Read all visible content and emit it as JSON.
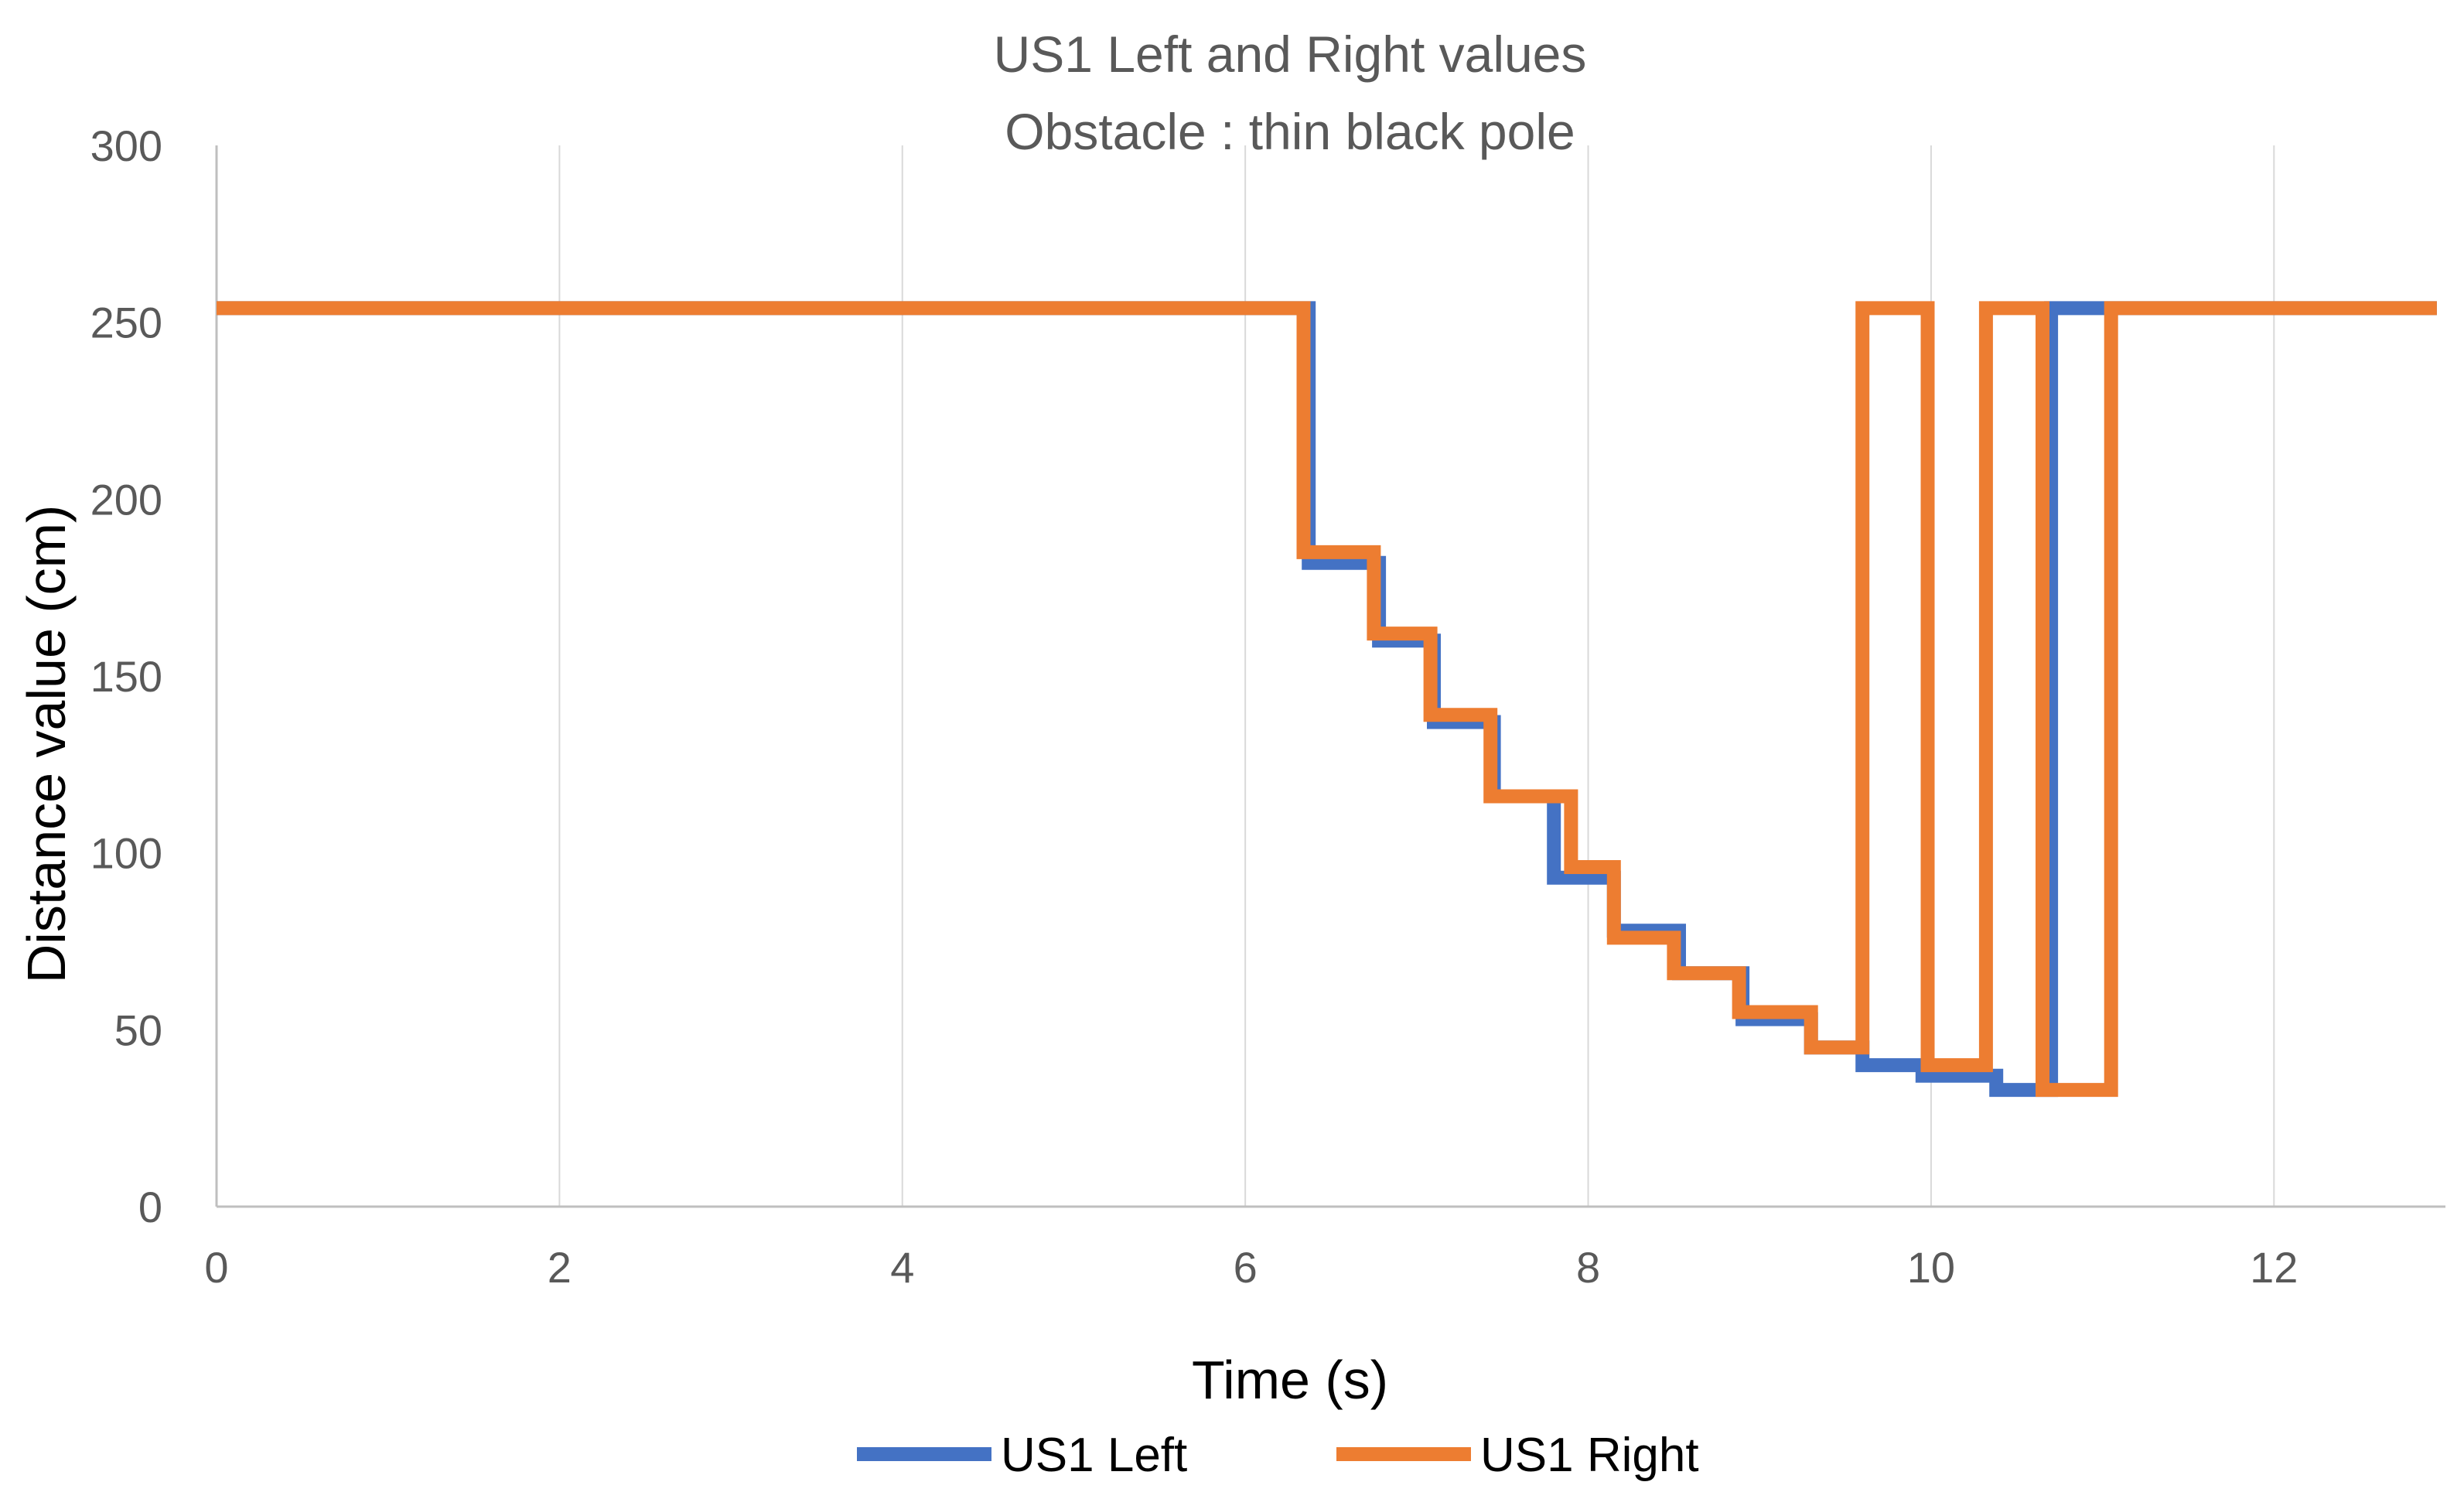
{
  "chart_data": {
    "type": "line",
    "title": "US1 Left and Right values",
    "subtitle": "Obstacle : thin black pole",
    "xlabel": "Time (s)",
    "ylabel": "Distance value (cm)",
    "xlim": [
      0,
      13
    ],
    "ylim": [
      0,
      300
    ],
    "x_ticks": [
      0,
      2,
      4,
      6,
      8,
      10,
      12
    ],
    "y_ticks": [
      0,
      50,
      100,
      150,
      200,
      250,
      300
    ],
    "grid": "vertical",
    "legend_position": "bottom",
    "series": [
      {
        "name": "US1 Left",
        "color": "#4472c4",
        "step": true,
        "points": [
          [
            0,
            254
          ],
          [
            6.37,
            182
          ],
          [
            6.78,
            160
          ],
          [
            7.1,
            137
          ],
          [
            7.45,
            116
          ],
          [
            7.8,
            93
          ],
          [
            8.15,
            78
          ],
          [
            8.53,
            66
          ],
          [
            8.9,
            53
          ],
          [
            9.3,
            45
          ],
          [
            9.6,
            40
          ],
          [
            9.95,
            37
          ],
          [
            10.38,
            33
          ],
          [
            10.7,
            254
          ],
          [
            11.05,
            254
          ],
          [
            12.95,
            254
          ]
        ]
      },
      {
        "name": "US1 Right",
        "color": "#ed7d31",
        "step": true,
        "points": [
          [
            0,
            254
          ],
          [
            6.34,
            185
          ],
          [
            6.75,
            162
          ],
          [
            7.08,
            139
          ],
          [
            7.43,
            116
          ],
          [
            7.9,
            96
          ],
          [
            8.15,
            76
          ],
          [
            8.5,
            66
          ],
          [
            8.88,
            55
          ],
          [
            9.3,
            45
          ],
          [
            9.6,
            254
          ],
          [
            9.98,
            40
          ],
          [
            10.32,
            254
          ],
          [
            10.65,
            33
          ],
          [
            11.05,
            254
          ],
          [
            12.95,
            254
          ]
        ]
      }
    ]
  }
}
